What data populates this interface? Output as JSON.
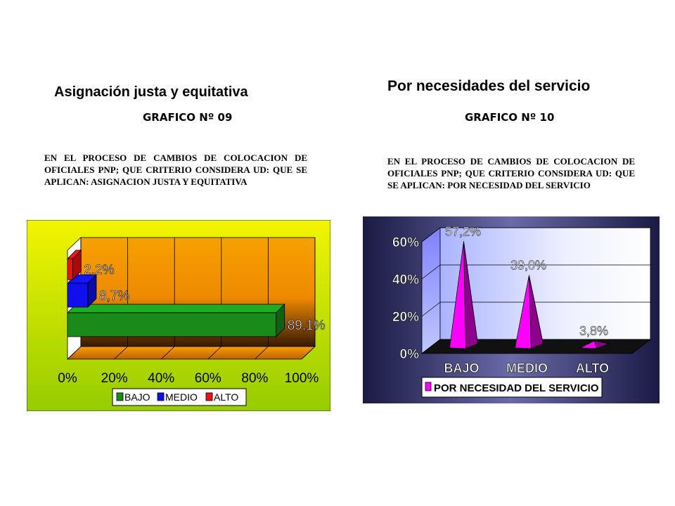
{
  "left": {
    "heading": "Asignación justa y equitativa",
    "subheading": "GRAFICO Nº 09",
    "question": "EN EL PROCESO DE CAMBIOS DE COLOCACION DE OFICIALES PNP; QUE CRITERIO CONSIDERA UD: QUE SE APLICAN: ASIGNACION JUSTA Y EQUITATIVA"
  },
  "right": {
    "heading": "Por necesidades del servicio",
    "subheading": "GRAFICO Nº 10",
    "question": "EN EL PROCESO DE CAMBIOS DE COLOCACION DE OFICIALES PNP; QUE CRITERIO CONSIDERA UD: QUE SE APLICAN: POR NECESIDAD DEL SERVICIO"
  },
  "chart_data": [
    {
      "type": "bar",
      "orientation": "horizontal",
      "three_d": true,
      "categories": [
        "BAJO",
        "MEDIO",
        "ALTO"
      ],
      "values": [
        89.1,
        8.7,
        2.2
      ],
      "data_labels": [
        "89,1%",
        "8,7%",
        "2,2%"
      ],
      "xlim": [
        0,
        100
      ],
      "x_ticks": [
        "0%",
        "20%",
        "40%",
        "60%",
        "80%",
        "100%"
      ],
      "grid": true,
      "legend": [
        "BAJO",
        "MEDIO",
        "ALTO"
      ],
      "legend_position": "bottom",
      "colors": {
        "BAJO": "#1a8a1a",
        "MEDIO": "#1010ee",
        "ALTO": "#ee1111",
        "background": "#e8f000",
        "background_bottom": "#9ccc00",
        "wall": "#f39a00"
      }
    },
    {
      "type": "area",
      "shape": "3d-cone",
      "categories": [
        "BAJO",
        "MEDIO",
        "ALTO"
      ],
      "series": [
        {
          "name": "POR NECESIDAD DEL SERVICIO",
          "values": [
            57.2,
            39.0,
            3.8
          ]
        }
      ],
      "data_labels": [
        "57,2%",
        "39,0%",
        "3,8%"
      ],
      "ylim": [
        0,
        60
      ],
      "y_ticks": [
        "0%",
        "20%",
        "40%",
        "60%"
      ],
      "grid": true,
      "legend_position": "bottom",
      "colors": {
        "series": "#ff00ff",
        "background": "#2a2a5a",
        "wall": "#ffffff",
        "floor": "#111111"
      }
    }
  ]
}
